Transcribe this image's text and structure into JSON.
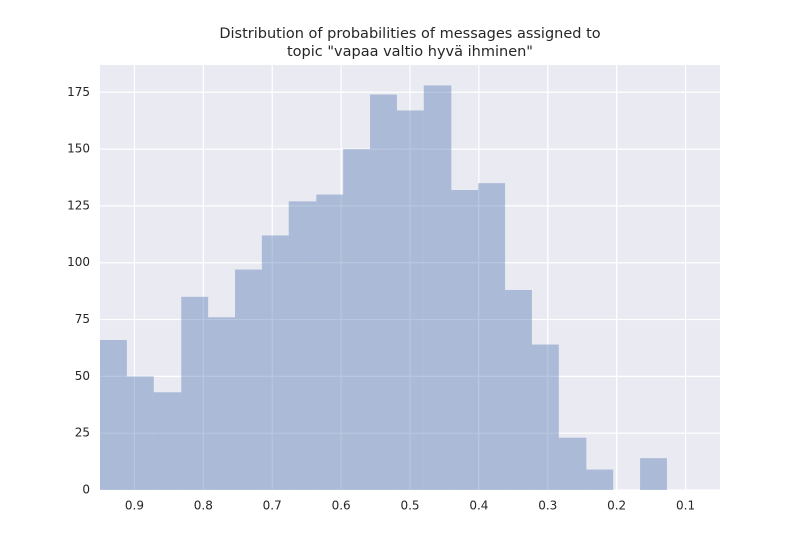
{
  "chart_data": {
    "type": "histogram",
    "title": [
      "Distribution of probabilities of messages assigned to",
      "topic \"vapaa valtio hyvä ihminen\""
    ],
    "bins": [
      0.95,
      0.911,
      0.872,
      0.832,
      0.793,
      0.754,
      0.715,
      0.676,
      0.636,
      0.597,
      0.558,
      0.519,
      0.48,
      0.44,
      0.401,
      0.362,
      0.323,
      0.284,
      0.244,
      0.205,
      0.166,
      0.127
    ],
    "values": [
      66,
      50,
      43,
      85,
      76,
      97,
      112,
      127,
      130,
      150,
      174,
      167,
      178,
      132,
      135,
      88,
      64,
      23,
      9,
      0,
      14
    ],
    "color": "#4c72b0",
    "xlim": [
      0.95,
      0.05
    ],
    "xticks": [
      0.9,
      0.8,
      0.7,
      0.6,
      0.5,
      0.4,
      0.3,
      0.2,
      0.1
    ],
    "ylim": [
      0,
      187
    ],
    "yticks": [
      0,
      25,
      50,
      75,
      100,
      125,
      150,
      175
    ],
    "grid": true
  }
}
